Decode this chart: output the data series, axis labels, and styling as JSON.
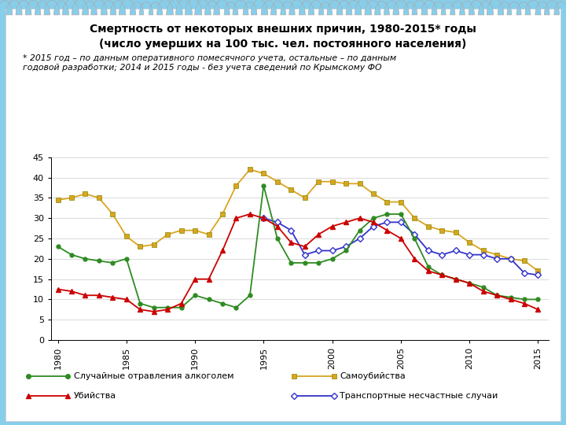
{
  "title_line1": "Смертность от некоторых внешних причин, 1980-2015* годы",
  "title_line2": "(число умерших на 100 тыс. чел. постоянного населения)",
  "subtitle": "* 2015 год – по данным оперативного помесячного учета, остальные – по данным\nгодовой разработки; 2014 и 2015 годы - без учета сведений по Крымскому ФО",
  "years": [
    1980,
    1981,
    1982,
    1983,
    1984,
    1985,
    1986,
    1987,
    1988,
    1989,
    1990,
    1991,
    1992,
    1993,
    1994,
    1995,
    1996,
    1997,
    1998,
    1999,
    2000,
    2001,
    2002,
    2003,
    2004,
    2005,
    2006,
    2007,
    2008,
    2009,
    2010,
    2011,
    2012,
    2013,
    2014,
    2015
  ],
  "alcohol": [
    23,
    21,
    20,
    19.5,
    19,
    20,
    9,
    8,
    8,
    8,
    11,
    10,
    9,
    8,
    11,
    38,
    25,
    19,
    19,
    19,
    20,
    22,
    27,
    30,
    31,
    31,
    25,
    18,
    16,
    15,
    14,
    13,
    11,
    10.5,
    10,
    10
  ],
  "suicide": [
    34.5,
    35,
    36,
    35,
    31,
    25.5,
    23,
    23.5,
    26,
    27,
    27,
    26,
    31,
    38,
    42,
    41,
    39,
    37,
    35,
    39,
    39,
    38.5,
    38.5,
    36,
    34,
    34,
    30,
    28,
    27,
    26.5,
    24,
    22,
    21,
    20,
    19.5,
    17
  ],
  "murder": [
    12.5,
    12,
    11,
    11,
    10.5,
    10,
    7.5,
    7,
    7.5,
    9,
    15,
    15,
    22,
    30,
    31,
    30,
    28,
    24,
    23,
    26,
    28,
    29,
    30,
    29,
    27,
    25,
    20,
    17,
    16,
    15,
    14,
    12,
    11,
    10,
    9,
    7.5
  ],
  "transport": [
    null,
    null,
    null,
    null,
    null,
    null,
    null,
    null,
    null,
    null,
    null,
    null,
    null,
    null,
    null,
    30,
    29,
    27,
    21,
    22,
    22,
    23,
    25,
    28,
    29,
    29,
    26,
    22,
    21,
    22,
    21,
    21,
    20,
    20,
    16.5,
    16
  ],
  "alcohol_color": "#2E8B22",
  "suicide_color": "#DAA520",
  "murder_color": "#CC0000",
  "transport_color": "#3333CC",
  "ylim": [
    0,
    45
  ],
  "yticks": [
    0,
    5,
    10,
    15,
    20,
    25,
    30,
    35,
    40,
    45
  ],
  "xticks": [
    1980,
    1985,
    1990,
    1995,
    2000,
    2005,
    2010,
    2015
  ],
  "outer_background": "#87CEEB",
  "legend_alcohol": "Случайные отравления алкоголем",
  "legend_suicide": "Самоубийства",
  "legend_murder": "Убийства",
  "legend_transport": "Транспортные несчастные случаи"
}
